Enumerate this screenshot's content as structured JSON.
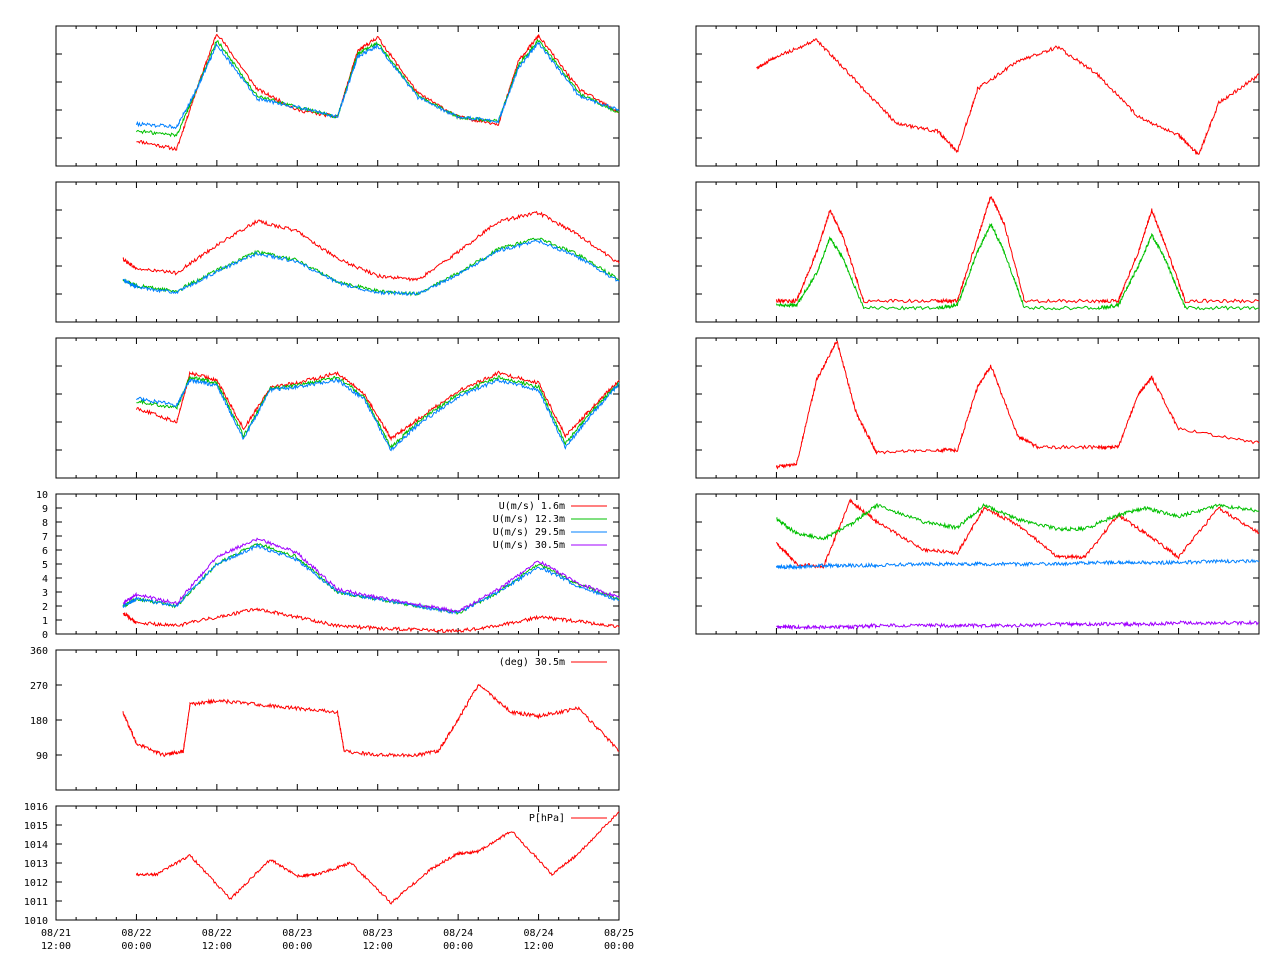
{
  "x_axis": {
    "date_labels": [
      "08/21",
      "08/22",
      "08/22",
      "08/23",
      "08/23",
      "08/24",
      "08/24",
      "08/25"
    ],
    "time_labels": [
      "12:00",
      "00:00",
      "12:00",
      "00:00",
      "12:00",
      "00:00",
      "12:00",
      "00:00"
    ]
  },
  "chart_data": [
    {
      "type": "line",
      "panel": "left-1",
      "x": [
        "08/22 00:00",
        "08/22 06:00",
        "08/22 09:00",
        "08/22 12:00",
        "08/22 18:00",
        "08/23 00:00",
        "08/23 06:00",
        "08/23 09:00",
        "08/23 12:00",
        "08/23 18:00",
        "08/24 00:00",
        "08/24 06:00",
        "08/24 09:00",
        "08/24 12:00",
        "08/24 18:00",
        "08/25 00:00"
      ],
      "series": [
        {
          "color": "#ff0000",
          "values": [
            0.18,
            0.12,
            0.55,
            0.95,
            0.55,
            0.4,
            0.35,
            0.82,
            0.92,
            0.52,
            0.35,
            0.3,
            0.75,
            0.93,
            0.55,
            0.38
          ]
        },
        {
          "color": "#00c000",
          "values": [
            0.25,
            0.22,
            0.55,
            0.9,
            0.5,
            0.42,
            0.35,
            0.8,
            0.88,
            0.5,
            0.35,
            0.32,
            0.72,
            0.9,
            0.52,
            0.38
          ]
        },
        {
          "color": "#0080ff",
          "values": [
            0.3,
            0.28,
            0.55,
            0.87,
            0.48,
            0.42,
            0.35,
            0.78,
            0.86,
            0.49,
            0.35,
            0.32,
            0.7,
            0.88,
            0.5,
            0.4
          ]
        }
      ]
    },
    {
      "type": "line",
      "panel": "left-2",
      "x": [
        "08/21 22:00",
        "08/22 00:00",
        "08/22 06:00",
        "08/22 12:00",
        "08/22 18:00",
        "08/23 00:00",
        "08/23 06:00",
        "08/23 12:00",
        "08/23 18:00",
        "08/24 00:00",
        "08/24 06:00",
        "08/24 12:00",
        "08/24 18:00",
        "08/25 00:00"
      ],
      "series": [
        {
          "color": "#ff0000",
          "values": [
            0.45,
            0.38,
            0.35,
            0.55,
            0.72,
            0.65,
            0.45,
            0.33,
            0.3,
            0.5,
            0.72,
            0.78,
            0.62,
            0.42
          ]
        },
        {
          "color": "#00c000",
          "values": [
            0.3,
            0.26,
            0.22,
            0.37,
            0.5,
            0.44,
            0.29,
            0.22,
            0.2,
            0.35,
            0.52,
            0.6,
            0.48,
            0.3
          ]
        },
        {
          "color": "#0080ff",
          "values": [
            0.3,
            0.25,
            0.21,
            0.36,
            0.49,
            0.43,
            0.28,
            0.21,
            0.2,
            0.34,
            0.51,
            0.58,
            0.46,
            0.29
          ]
        }
      ]
    },
    {
      "type": "line",
      "panel": "left-3",
      "x": [
        "08/22 00:00",
        "08/22 06:00",
        "08/22 08:00",
        "08/22 12:00",
        "08/22 16:00",
        "08/22 20:00",
        "08/23 00:00",
        "08/23 06:00",
        "08/23 10:00",
        "08/23 14:00",
        "08/23 18:00",
        "08/24 00:00",
        "08/24 06:00",
        "08/24 12:00",
        "08/24 16:00",
        "08/24 20:00",
        "08/25 00:00"
      ],
      "series": [
        {
          "color": "#ff0000",
          "values": [
            0.5,
            0.4,
            0.75,
            0.7,
            0.35,
            0.65,
            0.68,
            0.75,
            0.6,
            0.28,
            0.42,
            0.62,
            0.75,
            0.68,
            0.3,
            0.5,
            0.7
          ]
        },
        {
          "color": "#00c000",
          "values": [
            0.55,
            0.5,
            0.72,
            0.68,
            0.3,
            0.64,
            0.66,
            0.72,
            0.58,
            0.22,
            0.4,
            0.6,
            0.72,
            0.65,
            0.25,
            0.48,
            0.68
          ]
        },
        {
          "color": "#0080ff",
          "values": [
            0.57,
            0.52,
            0.7,
            0.66,
            0.28,
            0.63,
            0.65,
            0.7,
            0.56,
            0.2,
            0.38,
            0.58,
            0.7,
            0.63,
            0.22,
            0.46,
            0.67
          ]
        }
      ]
    },
    {
      "type": "line",
      "panel": "left-4",
      "ylim": [
        0,
        10
      ],
      "yticks": [
        "0",
        "1",
        "2",
        "3",
        "4",
        "5",
        "6",
        "7",
        "8",
        "9",
        "10"
      ],
      "legend_placement": "top-right",
      "x": [
        "08/21 22:00",
        "08/22 00:00",
        "08/22 06:00",
        "08/22 12:00",
        "08/22 18:00",
        "08/23 00:00",
        "08/23 06:00",
        "08/23 12:00",
        "08/23 18:00",
        "08/24 00:00",
        "08/24 06:00",
        "08/24 12:00",
        "08/24 18:00",
        "08/25 00:00"
      ],
      "series": [
        {
          "name": "U(m/s)  1.6m",
          "color": "#ff0000",
          "values": [
            1.5,
            0.8,
            0.6,
            1.2,
            1.8,
            1.2,
            0.6,
            0.4,
            0.3,
            0.2,
            0.6,
            1.2,
            0.9,
            0.5
          ]
        },
        {
          "name": "U(m/s) 12.3m",
          "color": "#00c000",
          "values": [
            2.0,
            2.5,
            2.0,
            5.0,
            6.5,
            5.5,
            3.0,
            2.5,
            2.0,
            1.5,
            3.0,
            5.0,
            3.5,
            2.5
          ]
        },
        {
          "name": "U(m/s) 29.5m",
          "color": "#0080ff",
          "values": [
            2.0,
            2.5,
            2.0,
            5.0,
            6.3,
            5.3,
            3.0,
            2.5,
            2.0,
            1.5,
            3.0,
            4.8,
            3.4,
            2.4
          ]
        },
        {
          "name": "U(m/s) 30.5m",
          "color": "#a000ff",
          "values": [
            2.2,
            2.8,
            2.2,
            5.5,
            6.8,
            5.8,
            3.2,
            2.6,
            2.1,
            1.6,
            3.2,
            5.2,
            3.6,
            2.6
          ]
        }
      ]
    },
    {
      "type": "line",
      "panel": "left-5",
      "ylim": [
        0,
        360
      ],
      "yticks": [
        "90",
        "180",
        "270",
        "360"
      ],
      "legend_placement": "top-right",
      "x": [
        "08/21 22:00",
        "08/22 00:00",
        "08/22 04:00",
        "08/22 07:00",
        "08/22 08:00",
        "08/22 12:00",
        "08/22 18:00",
        "08/23 00:00",
        "08/23 06:00",
        "08/23 07:00",
        "08/23 12:00",
        "08/23 18:00",
        "08/23 21:00",
        "08/24 00:00",
        "08/24 03:00",
        "08/24 08:00",
        "08/24 12:00",
        "08/24 18:00",
        "08/25 00:00"
      ],
      "series": [
        {
          "name": "(deg)  30.5m",
          "color": "#ff0000",
          "values": [
            200,
            120,
            90,
            100,
            220,
            230,
            220,
            210,
            200,
            100,
            90,
            90,
            100,
            180,
            270,
            200,
            190,
            210,
            100
          ]
        }
      ]
    },
    {
      "type": "line",
      "panel": "left-6",
      "ylim": [
        1010,
        1016
      ],
      "yticks": [
        "1010",
        "1011",
        "1012",
        "1013",
        "1014",
        "1015",
        "1016"
      ],
      "legend_placement": "top-right",
      "x": [
        "08/22 00:00",
        "08/22 03:00",
        "08/22 08:00",
        "08/22 14:00",
        "08/22 20:00",
        "08/23 00:00",
        "08/23 03:00",
        "08/23 08:00",
        "08/23 14:00",
        "08/23 20:00",
        "08/24 00:00",
        "08/24 03:00",
        "08/24 08:00",
        "08/24 14:00",
        "08/24 18:00",
        "08/25 00:00"
      ],
      "series": [
        {
          "name": "P[hPa]",
          "color": "#ff0000",
          "values": [
            1012.4,
            1012.4,
            1013.4,
            1011.1,
            1013.2,
            1012.3,
            1012.4,
            1013.0,
            1010.9,
            1012.7,
            1013.5,
            1013.6,
            1014.7,
            1012.4,
            1013.5,
            1015.7
          ]
        }
      ]
    },
    {
      "type": "line",
      "panel": "right-1",
      "x": [
        "08/21 21:00",
        "08/22 00:00",
        "08/22 06:00",
        "08/22 12:00",
        "08/22 18:00",
        "08/23 00:00",
        "08/23 03:00",
        "08/23 06:00",
        "08/23 12:00",
        "08/23 18:00",
        "08/24 00:00",
        "08/24 06:00",
        "08/24 12:00",
        "08/24 15:00",
        "08/24 18:00",
        "08/25 00:00"
      ],
      "series": [
        {
          "color": "#ff0000",
          "values": [
            0.7,
            0.78,
            0.9,
            0.6,
            0.3,
            0.25,
            0.1,
            0.55,
            0.75,
            0.85,
            0.65,
            0.35,
            0.22,
            0.08,
            0.45,
            0.65
          ]
        }
      ]
    },
    {
      "type": "line",
      "panel": "right-2",
      "x": [
        "08/22 00:00",
        "08/22 03:00",
        "08/22 06:00",
        "08/22 08:00",
        "08/22 10:00",
        "08/22 13:00",
        "08/23 00:00",
        "08/23 03:00",
        "08/23 06:00",
        "08/23 08:00",
        "08/23 10:00",
        "08/23 13:00",
        "08/24 00:00",
        "08/24 03:00",
        "08/24 06:00",
        "08/24 08:00",
        "08/24 10:00",
        "08/24 13:00",
        "08/25 00:00"
      ],
      "series": [
        {
          "color": "#ff0000",
          "values": [
            0.15,
            0.15,
            0.5,
            0.8,
            0.6,
            0.15,
            0.15,
            0.15,
            0.6,
            0.9,
            0.7,
            0.15,
            0.15,
            0.15,
            0.5,
            0.8,
            0.55,
            0.15,
            0.15
          ]
        },
        {
          "color": "#00c000",
          "values": [
            0.12,
            0.12,
            0.35,
            0.6,
            0.45,
            0.1,
            0.1,
            0.12,
            0.5,
            0.7,
            0.5,
            0.1,
            0.1,
            0.12,
            0.4,
            0.62,
            0.45,
            0.1,
            0.1
          ]
        }
      ]
    },
    {
      "type": "line",
      "panel": "right-3",
      "x": [
        "08/22 00:00",
        "08/22 03:00",
        "08/22 06:00",
        "08/22 09:00",
        "08/22 12:00",
        "08/22 15:00",
        "08/23 00:00",
        "08/23 03:00",
        "08/23 06:00",
        "08/23 08:00",
        "08/23 12:00",
        "08/23 15:00",
        "08/24 00:00",
        "08/24 03:00",
        "08/24 06:00",
        "08/24 08:00",
        "08/24 12:00",
        "08/25 00:00"
      ],
      "series": [
        {
          "color": "#ff0000",
          "values": [
            0.08,
            0.1,
            0.7,
            0.98,
            0.45,
            0.18,
            0.2,
            0.2,
            0.65,
            0.8,
            0.3,
            0.22,
            0.22,
            0.22,
            0.6,
            0.72,
            0.35,
            0.25
          ]
        }
      ]
    },
    {
      "type": "line",
      "panel": "right-4",
      "x": [
        "08/22 00:00",
        "08/22 03:00",
        "08/22 07:00",
        "08/22 11:00",
        "08/22 15:00",
        "08/22 22:00",
        "08/23 03:00",
        "08/23 07:00",
        "08/23 12:00",
        "08/23 18:00",
        "08/23 22:00",
        "08/24 03:00",
        "08/24 07:00",
        "08/24 12:00",
        "08/24 18:00",
        "08/25 00:00"
      ],
      "series": [
        {
          "color": "#ff0000",
          "values": [
            0.65,
            0.5,
            0.48,
            0.95,
            0.8,
            0.6,
            0.58,
            0.9,
            0.78,
            0.55,
            0.55,
            0.85,
            0.72,
            0.55,
            0.9,
            0.72
          ]
        },
        {
          "color": "#00c000",
          "values": [
            0.82,
            0.72,
            0.68,
            0.78,
            0.92,
            0.8,
            0.76,
            0.92,
            0.82,
            0.75,
            0.75,
            0.85,
            0.9,
            0.84,
            0.92,
            0.88
          ]
        },
        {
          "color": "#0080ff",
          "values": [
            0.48,
            0.48,
            0.49,
            0.49,
            0.49,
            0.5,
            0.5,
            0.5,
            0.5,
            0.5,
            0.51,
            0.51,
            0.51,
            0.51,
            0.52,
            0.52
          ]
        },
        {
          "color": "#a000ff",
          "values": [
            0.05,
            0.05,
            0.05,
            0.05,
            0.06,
            0.06,
            0.06,
            0.06,
            0.06,
            0.07,
            0.07,
            0.07,
            0.07,
            0.08,
            0.08,
            0.08
          ]
        }
      ]
    }
  ]
}
